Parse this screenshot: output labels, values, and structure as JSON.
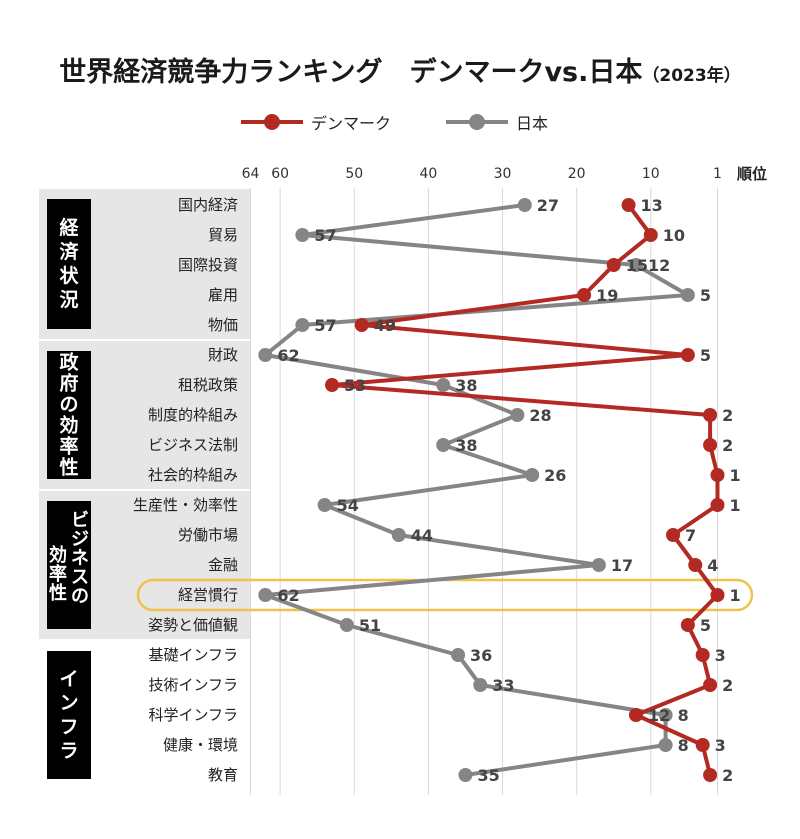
{
  "title": {
    "main": "世界経済競争力ランキング　デンマークvs.日本",
    "sub": "（2023年）"
  },
  "colors": {
    "denmark": "#b22a22",
    "japan": "#858585",
    "group_bg": "#e6e6e6",
    "group_label_bg": "#000000",
    "highlight": "#f0c24a"
  },
  "chart_data": {
    "type": "line",
    "orientation": "horizontal-rank",
    "title": "世界経済競争力ランキング　デンマークvs.日本（2023年）",
    "axis_label": "順位",
    "x_ticks": [
      "64",
      "60",
      "50",
      "40",
      "30",
      "20",
      "10",
      "1"
    ],
    "xlim": [
      64,
      1
    ],
    "x_reversed": true,
    "grid": true,
    "legend_position": "top-center",
    "groups": [
      {
        "label": "経済状況",
        "categories": [
          "国内経済",
          "貿易",
          "国際投資",
          "雇用",
          "物価"
        ]
      },
      {
        "label": "政府の効率性",
        "categories": [
          "財政",
          "租税政策",
          "制度的枠組み",
          "ビジネス法制",
          "社会的枠組み"
        ]
      },
      {
        "label": "ビジネスの効率性",
        "categories": [
          "生産性・効率性",
          "労働市場",
          "金融",
          "経営慣行",
          "姿勢と価値観"
        ]
      },
      {
        "label": "インフラ",
        "categories": [
          "基礎インフラ",
          "技術インフラ",
          "科学インフラ",
          "健康・環境",
          "教育"
        ]
      }
    ],
    "categories": [
      "国内経済",
      "貿易",
      "国際投資",
      "雇用",
      "物価",
      "財政",
      "租税政策",
      "制度的枠組み",
      "ビジネス法制",
      "社会的枠組み",
      "生産性・効率性",
      "労働市場",
      "金融",
      "経営慣行",
      "姿勢と価値観",
      "基礎インフラ",
      "技術インフラ",
      "科学インフラ",
      "健康・環境",
      "教育"
    ],
    "highlighted_category": "経営慣行",
    "series": [
      {
        "name": "デンマーク",
        "values": [
          13,
          10,
          15,
          19,
          49,
          5,
          53,
          2,
          2,
          1,
          1,
          7,
          4,
          1,
          5,
          3,
          2,
          12,
          3,
          2
        ]
      },
      {
        "name": "日本",
        "values": [
          27,
          57,
          12,
          5,
          57,
          62,
          38,
          28,
          38,
          26,
          54,
          44,
          17,
          62,
          51,
          36,
          33,
          8,
          8,
          35
        ]
      }
    ]
  }
}
